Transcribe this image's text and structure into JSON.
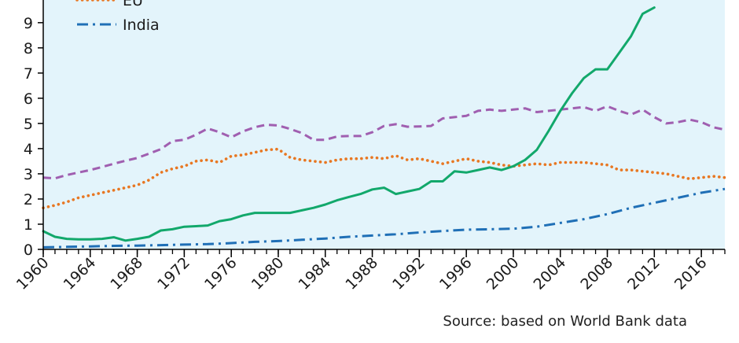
{
  "chart_data": {
    "type": "line",
    "title": "",
    "xlabel": "",
    "ylabel": "",
    "xlim": [
      1960,
      2018
    ],
    "ylim": [
      0,
      9.9
    ],
    "y_ticks": [
      0,
      1,
      2,
      3,
      4,
      5,
      6,
      7,
      8,
      9
    ],
    "x_ticks": [
      1960,
      1964,
      1968,
      1972,
      1976,
      1980,
      1984,
      1988,
      1992,
      1996,
      2000,
      2004,
      2008,
      2012,
      2016
    ],
    "grid": false,
    "legend_position": "top-left",
    "series": [
      {
        "name": "",
        "color": "#a05fb0",
        "style": "dashed",
        "x": [
          1960,
          1961,
          1962,
          1963,
          1964,
          1965,
          1966,
          1967,
          1968,
          1969,
          1970,
          1971,
          1972,
          1973,
          1974,
          1975,
          1976,
          1977,
          1978,
          1979,
          1980,
          1981,
          1982,
          1983,
          1984,
          1985,
          1986,
          1987,
          1988,
          1989,
          1990,
          1991,
          1992,
          1993,
          1994,
          1995,
          1996,
          1997,
          1998,
          1999,
          2000,
          2001,
          2002,
          2003,
          2004,
          2005,
          2006,
          2007,
          2008,
          2009,
          2010,
          2011,
          2012,
          2013,
          2014,
          2015,
          2016,
          2017,
          2018
        ],
        "values": [
          2.85,
          2.82,
          2.95,
          3.05,
          3.15,
          3.27,
          3.4,
          3.52,
          3.63,
          3.8,
          3.98,
          4.3,
          4.35,
          4.55,
          4.8,
          4.65,
          4.45,
          4.68,
          4.85,
          4.95,
          4.92,
          4.78,
          4.62,
          4.35,
          4.35,
          4.48,
          4.5,
          4.5,
          4.65,
          4.9,
          4.97,
          4.87,
          4.88,
          4.9,
          5.2,
          5.25,
          5.3,
          5.5,
          5.55,
          5.5,
          5.55,
          5.6,
          5.45,
          5.5,
          5.55,
          5.6,
          5.65,
          5.5,
          5.68,
          5.5,
          5.35,
          5.55,
          5.25,
          5.0,
          5.05,
          5.15,
          5.05,
          4.85,
          4.75
        ]
      },
      {
        "name": "EU",
        "color": "#e87722",
        "style": "dotted",
        "x": [
          1960,
          1961,
          1962,
          1963,
          1964,
          1965,
          1966,
          1967,
          1968,
          1969,
          1970,
          1971,
          1972,
          1973,
          1974,
          1975,
          1976,
          1977,
          1978,
          1979,
          1980,
          1981,
          1982,
          1983,
          1984,
          1985,
          1986,
          1987,
          1988,
          1989,
          1990,
          1991,
          1992,
          1993,
          1994,
          1995,
          1996,
          1997,
          1998,
          1999,
          2000,
          2001,
          2002,
          2003,
          2004,
          2005,
          2006,
          2007,
          2008,
          2009,
          2010,
          2011,
          2012,
          2013,
          2014,
          2015,
          2016,
          2017,
          2018
        ],
        "values": [
          1.65,
          1.75,
          1.88,
          2.05,
          2.15,
          2.25,
          2.35,
          2.45,
          2.55,
          2.75,
          3.05,
          3.2,
          3.3,
          3.5,
          3.55,
          3.45,
          3.7,
          3.75,
          3.85,
          3.95,
          3.98,
          3.65,
          3.55,
          3.5,
          3.45,
          3.55,
          3.6,
          3.6,
          3.65,
          3.6,
          3.72,
          3.55,
          3.6,
          3.5,
          3.4,
          3.5,
          3.6,
          3.5,
          3.45,
          3.35,
          3.3,
          3.35,
          3.4,
          3.35,
          3.45,
          3.45,
          3.45,
          3.4,
          3.35,
          3.15,
          3.15,
          3.1,
          3.05,
          3.0,
          2.9,
          2.8,
          2.85,
          2.9,
          2.85
        ]
      },
      {
        "name": "",
        "color": "#12a86b",
        "style": "solid",
        "x": [
          1960,
          1961,
          1962,
          1963,
          1964,
          1965,
          1966,
          1967,
          1968,
          1969,
          1970,
          1971,
          1972,
          1973,
          1974,
          1975,
          1976,
          1977,
          1978,
          1979,
          1980,
          1981,
          1982,
          1983,
          1984,
          1985,
          1986,
          1987,
          1988,
          1989,
          1990,
          1991,
          1992,
          1993,
          1994,
          1995,
          1996,
          1997,
          1998,
          1999,
          2000,
          2001,
          2002,
          2003,
          2004,
          2005,
          2006,
          2007,
          2008,
          2009,
          2010,
          2011,
          2012
        ],
        "values": [
          0.72,
          0.5,
          0.42,
          0.4,
          0.4,
          0.42,
          0.48,
          0.35,
          0.42,
          0.5,
          0.75,
          0.8,
          0.9,
          0.92,
          0.95,
          1.12,
          1.2,
          1.35,
          1.45,
          1.45,
          1.45,
          1.45,
          1.55,
          1.65,
          1.78,
          1.95,
          2.08,
          2.2,
          2.38,
          2.45,
          2.2,
          2.3,
          2.4,
          2.7,
          2.7,
          3.1,
          3.05,
          3.15,
          3.25,
          3.15,
          3.3,
          3.55,
          3.95,
          4.7,
          5.5,
          6.2,
          6.8,
          7.15,
          7.15,
          7.8,
          8.45,
          9.35,
          9.6
        ]
      },
      {
        "name": "India",
        "color": "#1f6fb6",
        "style": "dashdot",
        "x": [
          1960,
          1962,
          1964,
          1966,
          1968,
          1970,
          1972,
          1974,
          1976,
          1978,
          1980,
          1982,
          1984,
          1986,
          1988,
          1990,
          1992,
          1994,
          1996,
          1998,
          2000,
          2002,
          2004,
          2006,
          2008,
          2010,
          2012,
          2014,
          2016,
          2018
        ],
        "values": [
          0.08,
          0.1,
          0.12,
          0.14,
          0.15,
          0.17,
          0.19,
          0.21,
          0.25,
          0.3,
          0.33,
          0.38,
          0.43,
          0.5,
          0.55,
          0.6,
          0.67,
          0.73,
          0.78,
          0.8,
          0.82,
          0.9,
          1.05,
          1.2,
          1.4,
          1.65,
          1.85,
          2.05,
          2.25,
          2.4
        ]
      }
    ]
  },
  "source": "Source: based on World Bank data",
  "colors": {
    "plot_background": "#e3f4fb",
    "axis": "#000000"
  }
}
